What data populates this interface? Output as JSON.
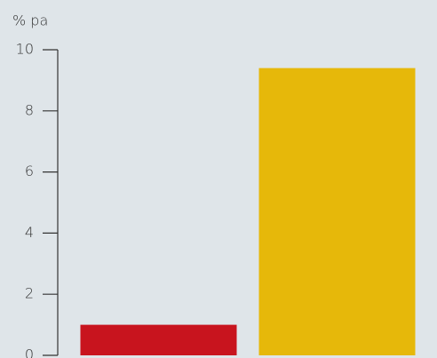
{
  "chart_data": {
    "type": "bar",
    "y_label": "% pa",
    "categories": [
      null,
      null
    ],
    "values": [
      1.0,
      9.4
    ],
    "colors": [
      "#c8141e",
      "#e6b80a"
    ],
    "ylim": [
      0,
      10
    ],
    "yticks": [
      0,
      2,
      4,
      6,
      8,
      10
    ],
    "grid": false
  }
}
